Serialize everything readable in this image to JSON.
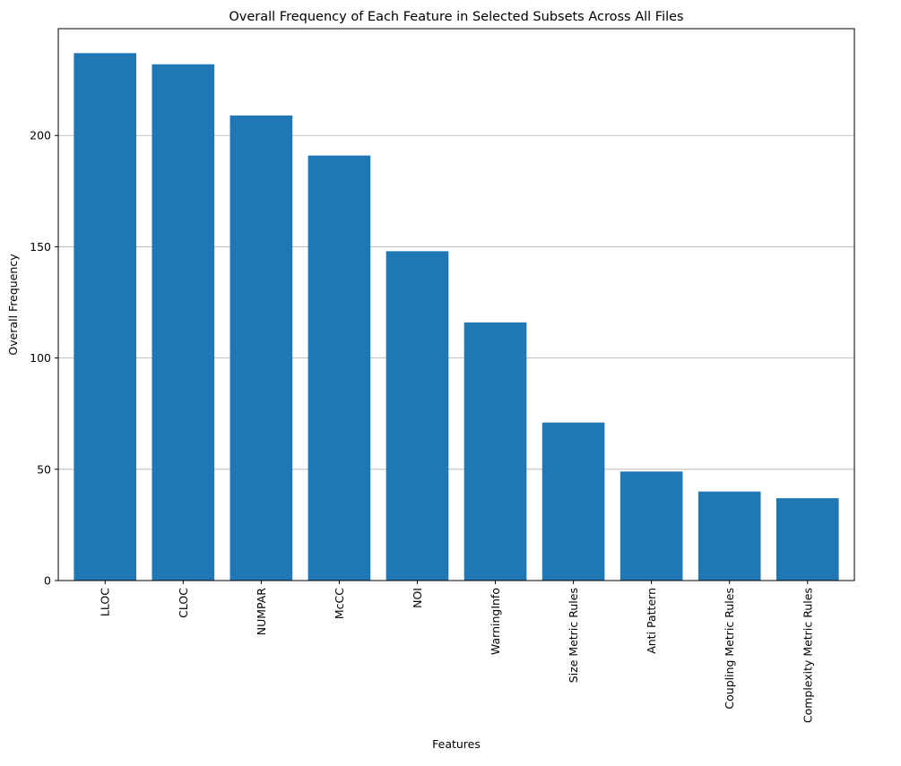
{
  "chart_data": {
    "type": "bar",
    "title": "Overall Frequency of Each Feature in Selected Subsets Across All Files",
    "xlabel": "Features",
    "ylabel": "Overall Frequency",
    "categories": [
      "LLOC",
      "CLOC",
      "NUMPAR",
      "McCC",
      "NOI",
      "WarningInfo",
      "Size Metric Rules",
      "Anti Pattern",
      "Coupling Metric Rules",
      "Complexity Metric Rules"
    ],
    "values": [
      237,
      232,
      209,
      191,
      148,
      116,
      71,
      49,
      40,
      37
    ],
    "ylim": [
      0,
      248
    ],
    "yticks": [
      0,
      50,
      100,
      150,
      200
    ],
    "grid": "y",
    "bar_color": "#1f77b4"
  }
}
